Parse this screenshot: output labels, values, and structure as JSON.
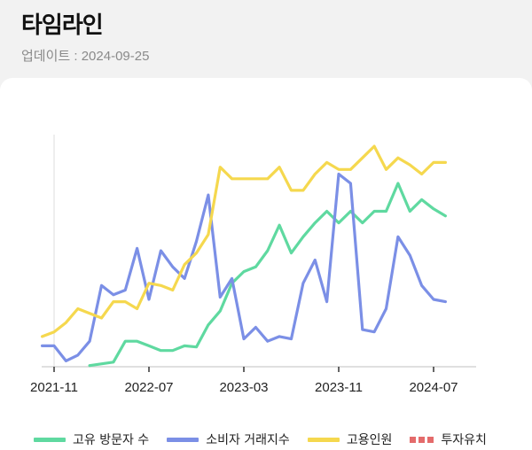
{
  "header": {
    "title": "타임라인",
    "update_label": "업데이트 : ",
    "update_date": "2024-09-25"
  },
  "colors": {
    "green": "#5fd9a0",
    "blue": "#7b8fe6",
    "yellow": "#f5d84e",
    "red": "#e46b6b"
  },
  "chart_data": {
    "type": "line",
    "x_tick_labels": [
      "2021-11",
      "2022-07",
      "2023-03",
      "2023-11",
      "2024-07"
    ],
    "x_tick_dates": [
      "2021-11",
      "2022-07",
      "2023-03",
      "2023-11",
      "2024-07"
    ],
    "grid": false,
    "legend_position": "bottom",
    "series": [
      {
        "name": "고유 방문자 수",
        "color": "#5fd9a0",
        "x": [
          "2022-02",
          "2022-04",
          "2022-05",
          "2022-06",
          "2022-07",
          "2022-08",
          "2022-09",
          "2022-10",
          "2022-11",
          "2022-12",
          "2023-01",
          "2023-02",
          "2023-03",
          "2023-04",
          "2023-05",
          "2023-06",
          "2023-07",
          "2023-08",
          "2023-09",
          "2023-10",
          "2023-11",
          "2023-12",
          "2024-01",
          "2024-02",
          "2024-03",
          "2024-04",
          "2024-05",
          "2024-06",
          "2024-07",
          "2024-08"
        ],
        "values": [
          0.5,
          2,
          11,
          11,
          9,
          7,
          7,
          9,
          8.5,
          18,
          24,
          36,
          41,
          43,
          50,
          61,
          49,
          56,
          62,
          67,
          62,
          67,
          62,
          67,
          67,
          79,
          67,
          72,
          68,
          65
        ]
      },
      {
        "name": "소비자 거래지수",
        "color": "#7b8fe6",
        "x": [
          "2021-10",
          "2021-11",
          "2021-12",
          "2022-01",
          "2022-02",
          "2022-03",
          "2022-04",
          "2022-05",
          "2022-06",
          "2022-07",
          "2022-08",
          "2022-09",
          "2022-10",
          "2022-11",
          "2022-12",
          "2023-01",
          "2023-02",
          "2023-03",
          "2023-04",
          "2023-05",
          "2023-06",
          "2023-07",
          "2023-08",
          "2023-09",
          "2023-10",
          "2023-11",
          "2023-12",
          "2024-01",
          "2024-02",
          "2024-03",
          "2024-04",
          "2024-05",
          "2024-06",
          "2024-07",
          "2024-08"
        ],
        "values": [
          9,
          9,
          2.5,
          5,
          11,
          35,
          31,
          33,
          51,
          29,
          50,
          43,
          38,
          54,
          74,
          30,
          38,
          12,
          17,
          11,
          13,
          12,
          36,
          46,
          28,
          83,
          79,
          16,
          15,
          25,
          56,
          48,
          35,
          29,
          28
        ]
      },
      {
        "name": "고용인원",
        "color": "#f5d84e",
        "x": [
          "2021-10",
          "2021-11",
          "2021-12",
          "2022-01",
          "2022-02",
          "2022-03",
          "2022-04",
          "2022-05",
          "2022-06",
          "2022-07",
          "2022-08",
          "2022-09",
          "2022-10",
          "2022-11",
          "2022-12",
          "2023-01",
          "2023-02",
          "2023-03",
          "2023-04",
          "2023-05",
          "2023-06",
          "2023-07",
          "2023-08",
          "2023-09",
          "2023-10",
          "2023-11",
          "2023-12",
          "2024-01",
          "2024-02",
          "2024-03",
          "2024-04",
          "2024-05",
          "2024-06",
          "2024-07",
          "2024-08"
        ],
        "values": [
          13,
          15,
          19,
          25,
          23,
          21,
          28,
          28,
          25,
          36,
          35,
          33,
          44,
          49,
          57,
          86,
          81,
          81,
          81,
          81,
          86,
          76,
          76,
          83,
          88,
          85,
          85,
          90,
          95,
          85,
          90,
          87,
          83,
          88,
          88
        ]
      },
      {
        "name": "투자유치",
        "color": "#e46b6b",
        "x": [],
        "values": []
      }
    ]
  },
  "legend": [
    {
      "label": "고유 방문자 수",
      "style": "solid",
      "color": "#5fd9a0"
    },
    {
      "label": "소비자 거래지수",
      "style": "solid",
      "color": "#7b8fe6"
    },
    {
      "label": "고용인원",
      "style": "solid",
      "color": "#f5d84e"
    },
    {
      "label": "투자유치",
      "style": "dashed",
      "color": "#e46b6b"
    }
  ]
}
